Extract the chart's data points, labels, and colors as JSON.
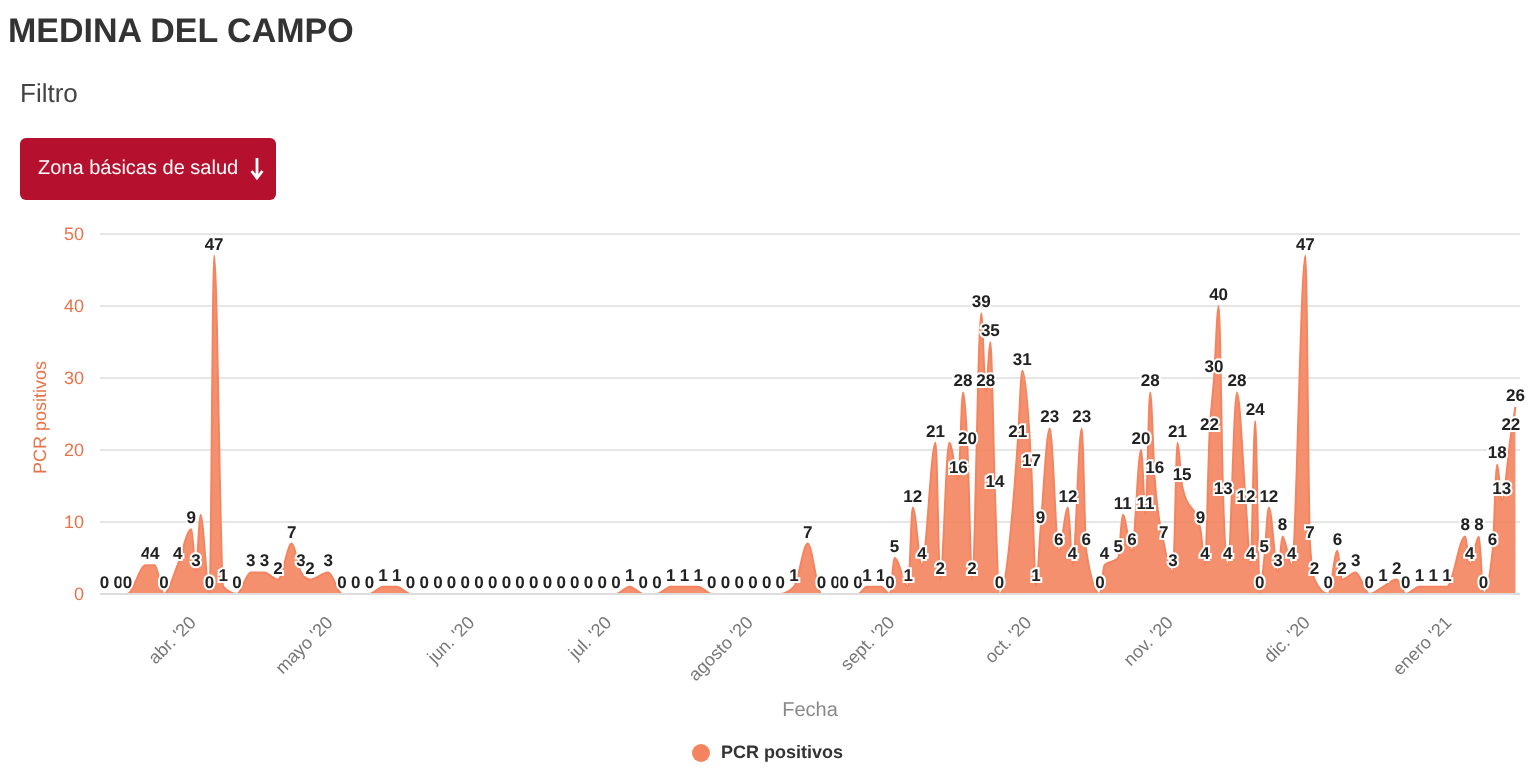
{
  "chart_data": {
    "type": "area",
    "title": "MEDINA DEL CAMPO",
    "annotations": [
      "Filtro",
      "Zona básicas de salud"
    ],
    "xlabel": "Fecha",
    "ylabel": "PCR positivos",
    "x": [
      "2020-03-13",
      "2020-03-16",
      "2020-03-18",
      "2020-03-22",
      "2020-03-24",
      "2020-03-26",
      "2020-03-29",
      "2020-04-01",
      "2020-04-02",
      "2020-04-03",
      "2020-04-05",
      "2020-04-06",
      "2020-04-08",
      "2020-04-11",
      "2020-04-14",
      "2020-04-17",
      "2020-04-20",
      "2020-04-23",
      "2020-04-25",
      "2020-04-27",
      "2020-05-01",
      "2020-05-04",
      "2020-05-07",
      "2020-05-10",
      "2020-05-13",
      "2020-05-16",
      "2020-05-19",
      "2020-05-22",
      "2020-05-25",
      "2020-05-28",
      "2020-05-31",
      "2020-06-03",
      "2020-06-06",
      "2020-06-09",
      "2020-06-12",
      "2020-06-15",
      "2020-06-18",
      "2020-06-21",
      "2020-06-24",
      "2020-06-27",
      "2020-06-30",
      "2020-07-03",
      "2020-07-06",
      "2020-07-09",
      "2020-07-12",
      "2020-07-15",
      "2020-07-18",
      "2020-07-21",
      "2020-07-24",
      "2020-07-27",
      "2020-07-30",
      "2020-08-02",
      "2020-08-05",
      "2020-08-08",
      "2020-08-11",
      "2020-08-14",
      "2020-08-17",
      "2020-08-20",
      "2020-08-22",
      "2020-08-25",
      "2020-08-27",
      "2020-08-30",
      "2020-09-01",
      "2020-09-02",
      "2020-09-05",
      "2020-09-06",
      "2020-09-08",
      "2020-09-11",
      "2020-09-12",
      "2020-09-14",
      "2020-09-16",
      "2020-09-17",
      "2020-09-18",
      "2020-09-19",
      "2020-09-21",
      "2020-09-22",
      "2020-09-23",
      "2020-09-24",
      "2020-09-25",
      "2020-09-29",
      "2020-09-30",
      "2020-10-02",
      "2020-10-03",
      "2020-10-04",
      "2020-10-06",
      "2020-10-08",
      "2020-10-10",
      "2020-10-11",
      "2020-10-13",
      "2020-10-14",
      "2020-10-17",
      "2020-10-18",
      "2020-10-21",
      "2020-10-22",
      "2020-10-24",
      "2020-10-26",
      "2020-10-27",
      "2020-10-28",
      "2020-10-29",
      "2020-10-31",
      "2020-11-02",
      "2020-11-03",
      "2020-11-04",
      "2020-11-08",
      "2020-11-09",
      "2020-11-10",
      "2020-11-11",
      "2020-11-12",
      "2020-11-13",
      "2020-11-14",
      "2020-11-16",
      "2020-11-18",
      "2020-11-19",
      "2020-11-20",
      "2020-11-21",
      "2020-11-22",
      "2020-11-23",
      "2020-11-25",
      "2020-11-26",
      "2020-11-28",
      "2020-12-01",
      "2020-12-02",
      "2020-12-03",
      "2020-12-06",
      "2020-12-08",
      "2020-12-09",
      "2020-12-12",
      "2020-12-15",
      "2020-12-18",
      "2020-12-21",
      "2020-12-23",
      "2020-12-26",
      "2020-12-29",
      "2021-01-01",
      "2021-01-05",
      "2021-01-06",
      "2021-01-08",
      "2021-01-09",
      "2021-01-11",
      "2021-01-12",
      "2021-01-13",
      "2021-01-15",
      "2021-01-16"
    ],
    "series": [
      {
        "name": "PCR positivos",
        "color": "#f4845f",
        "values": [
          0,
          0,
          0,
          4,
          4,
          0,
          4,
          9,
          3,
          11,
          0,
          47,
          1,
          0,
          3,
          3,
          2,
          7,
          3,
          2,
          3,
          0,
          0,
          0,
          1,
          1,
          0,
          0,
          0,
          0,
          0,
          0,
          0,
          0,
          0,
          0,
          0,
          0,
          0,
          0,
          0,
          0,
          1,
          0,
          0,
          1,
          1,
          1,
          0,
          0,
          0,
          0,
          0,
          0,
          1,
          7,
          0,
          0,
          0,
          0,
          1,
          1,
          0,
          5,
          1,
          12,
          4,
          21,
          2,
          21,
          16,
          28,
          20,
          2,
          39,
          28,
          35,
          14,
          0,
          21,
          31,
          17,
          1,
          9,
          23,
          6,
          12,
          4,
          23,
          6,
          0,
          4,
          5,
          11,
          6,
          20,
          11,
          28,
          16,
          7,
          3,
          21,
          15,
          9,
          4,
          22,
          30,
          40,
          13,
          4,
          28,
          12,
          4,
          24,
          0,
          5,
          12,
          3,
          8,
          4,
          47,
          7,
          2,
          0,
          6,
          2,
          3,
          0,
          1,
          2,
          0,
          1,
          1,
          1,
          8,
          4,
          8,
          0,
          6,
          18,
          13,
          22,
          26
        ],
        "value_labels": [
          "0",
          "0",
          "0",
          "4",
          "4",
          "0",
          "4",
          "9",
          "3",
          null,
          "0",
          "47",
          "1",
          "0",
          "3",
          "3",
          "2",
          "7",
          "3",
          "2",
          "3",
          "0",
          "0",
          "0",
          "1",
          "1",
          "0",
          "0",
          "0",
          "0",
          "0",
          "0",
          "0",
          "0",
          "0",
          "0",
          "0",
          "0",
          "0",
          "0",
          "0",
          "0",
          "1",
          "0",
          "0",
          "1",
          "1",
          "1",
          "0",
          "0",
          "0",
          "0",
          "0",
          "0",
          "1",
          "7",
          "0",
          "0",
          "0",
          "0",
          "1",
          "1",
          "0",
          "5",
          "1",
          "12",
          "4",
          "21",
          "2",
          null,
          "16",
          "28",
          "20",
          "2",
          "39",
          "28",
          "35",
          "14",
          "0",
          "21",
          "31",
          "17",
          "1",
          "9",
          "23",
          "6",
          "12",
          "4",
          "23",
          "6",
          "0",
          "4",
          "5",
          "11",
          "6",
          "20",
          "11",
          "28",
          "16",
          "7",
          "3",
          "21",
          "15",
          "9",
          "4",
          "22",
          "30",
          "40",
          "13",
          "4",
          "28",
          "12",
          "4",
          "24",
          "0",
          "5",
          "12",
          "3",
          "8",
          "4",
          "47",
          "7",
          "2",
          "0",
          "6",
          "2",
          "3",
          "0",
          "1",
          "2",
          "0",
          "1",
          "1",
          "1",
          "8",
          "4",
          "8",
          "0",
          "6",
          "18",
          "13",
          "22",
          "26"
        ]
      }
    ],
    "xlim": [
      "2020-03-12",
      "2021-01-17"
    ],
    "xticks": [
      {
        "value": "2020-04-01",
        "label": "abr. '20"
      },
      {
        "value": "2020-05-01",
        "label": "mayo '20"
      },
      {
        "value": "2020-06-01",
        "label": "jun. '20"
      },
      {
        "value": "2020-07-01",
        "label": "jul. '20"
      },
      {
        "value": "2020-08-01",
        "label": "agosto '20"
      },
      {
        "value": "2020-09-01",
        "label": "sept. '20"
      },
      {
        "value": "2020-10-01",
        "label": "oct. '20"
      },
      {
        "value": "2020-11-01",
        "label": "nov. '20"
      },
      {
        "value": "2020-12-01",
        "label": "dic. '20"
      },
      {
        "value": "2021-01-01",
        "label": "enero '21"
      }
    ],
    "ylim": [
      0,
      50
    ],
    "yticks": [
      0,
      10,
      20,
      30,
      40,
      50
    ],
    "grid": "y",
    "legend": "bottom"
  }
}
